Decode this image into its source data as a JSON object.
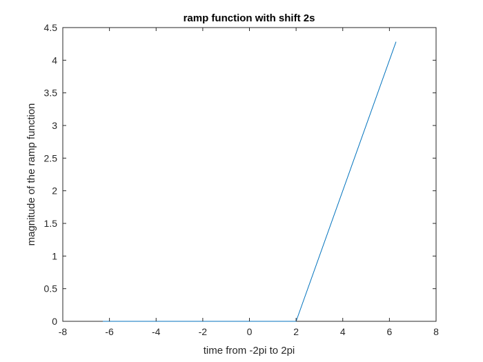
{
  "chart_data": {
    "type": "line",
    "title": "ramp function with shift 2s",
    "xlabel": "time from -2pi to 2pi",
    "ylabel": "magnitude of  the ramp function",
    "xlim": [
      -8,
      8
    ],
    "ylim": [
      0,
      4.5
    ],
    "xticks": [
      -8,
      -6,
      -4,
      -2,
      0,
      2,
      4,
      6,
      8
    ],
    "yticks": [
      0,
      0.5,
      1,
      1.5,
      2,
      2.5,
      3,
      3.5,
      4,
      4.5
    ],
    "xtick_labels": [
      "-8",
      "-6",
      "-4",
      "-2",
      "0",
      "2",
      "4",
      "6",
      "8"
    ],
    "ytick_labels": [
      "0",
      "0.5",
      "1",
      "1.5",
      "2",
      "2.5",
      "3",
      "3.5",
      "4",
      "4.5"
    ],
    "grid": false,
    "box": true,
    "series": [
      {
        "color": "#0072BD",
        "x": [
          -6.2832,
          2.0,
          6.2832
        ],
        "y": [
          0,
          0,
          4.2832
        ]
      }
    ]
  },
  "colors": {
    "line": "#0072BD",
    "axes": "#262626",
    "background": "#ffffff"
  }
}
